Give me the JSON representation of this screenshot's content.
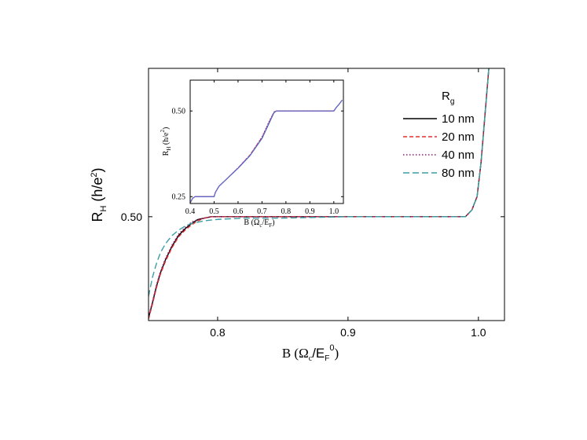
{
  "chart_data": [
    {
      "id": "main",
      "type": "line",
      "xlim": [
        0.747,
        1.02
      ],
      "ylim": [
        0.423,
        0.61
      ],
      "xlabel": "B (Ωc/EF0)",
      "ylabel": "RH (h/e2)",
      "xticks": [
        0.8,
        0.9,
        1.0
      ],
      "xtick_labels": [
        "0.8",
        "0.9",
        "1.0"
      ],
      "yticks": [
        0.5
      ],
      "ytick_labels": [
        "0.50"
      ],
      "grid": false,
      "series": [
        {
          "name": "10 nm",
          "color": "#000000",
          "dash": "",
          "x": [
            0.747,
            0.75,
            0.753,
            0.756,
            0.76,
            0.765,
            0.77,
            0.775,
            0.78,
            0.785,
            0.79,
            0.795,
            0.8,
            0.82,
            0.85,
            0.9,
            0.95,
            0.99,
            0.995,
            0.999,
            1.002,
            1.005,
            1.008,
            1.01
          ],
          "y": [
            0.425,
            0.436,
            0.448,
            0.458,
            0.468,
            0.478,
            0.486,
            0.491,
            0.495,
            0.498,
            0.499,
            0.5,
            0.5,
            0.5,
            0.5,
            0.5,
            0.5,
            0.5,
            0.505,
            0.515,
            0.54,
            0.575,
            0.61,
            0.615
          ]
        },
        {
          "name": "20 nm",
          "color": "#e03030",
          "dash": "5,3",
          "x": [
            0.747,
            0.75,
            0.753,
            0.756,
            0.76,
            0.765,
            0.77,
            0.775,
            0.78,
            0.785,
            0.79,
            0.795,
            0.8,
            0.82,
            0.85,
            0.9,
            0.95,
            0.99,
            0.995,
            0.999,
            1.002,
            1.005,
            1.008,
            1.01
          ],
          "y": [
            0.424,
            0.435,
            0.447,
            0.457,
            0.467,
            0.477,
            0.485,
            0.49,
            0.494,
            0.497,
            0.499,
            0.5,
            0.5,
            0.5,
            0.5,
            0.5,
            0.5,
            0.5,
            0.505,
            0.515,
            0.54,
            0.575,
            0.61,
            0.615
          ]
        },
        {
          "name": "40 nm",
          "color": "#8e1a72",
          "dash": "1.5,2.5",
          "x": [
            0.747,
            0.75,
            0.753,
            0.756,
            0.76,
            0.765,
            0.77,
            0.775,
            0.78,
            0.785,
            0.79,
            0.795,
            0.8,
            0.82,
            0.85,
            0.9,
            0.95,
            0.99,
            0.995,
            0.999,
            1.002,
            1.005,
            1.008,
            1.01
          ],
          "y": [
            0.426,
            0.437,
            0.449,
            0.459,
            0.469,
            0.479,
            0.487,
            0.492,
            0.496,
            0.498,
            0.499,
            0.5,
            0.5,
            0.5,
            0.5,
            0.5,
            0.5,
            0.5,
            0.505,
            0.515,
            0.54,
            0.575,
            0.61,
            0.615
          ]
        },
        {
          "name": "80 nm",
          "color": "#3a9ea4",
          "dash": "8,4",
          "x": [
            0.747,
            0.75,
            0.753,
            0.756,
            0.76,
            0.765,
            0.77,
            0.775,
            0.78,
            0.79,
            0.8,
            0.82,
            0.85,
            0.9,
            0.95,
            0.99,
            0.995,
            0.999,
            1.002,
            1.005,
            1.008,
            1.01
          ],
          "y": [
            0.441,
            0.455,
            0.465,
            0.473,
            0.48,
            0.486,
            0.49,
            0.493,
            0.495,
            0.497,
            0.498,
            0.499,
            0.499,
            0.5,
            0.5,
            0.5,
            0.505,
            0.515,
            0.54,
            0.575,
            0.61,
            0.615
          ]
        }
      ]
    },
    {
      "id": "inset",
      "type": "line",
      "xlim": [
        0.4,
        1.04
      ],
      "ylim": [
        0.23,
        0.59
      ],
      "xlabel": "B (Ωc/EF0)",
      "ylabel": "RH (h/e2)",
      "xticks": [
        0.4,
        0.5,
        0.6,
        0.7,
        0.8,
        0.9,
        1.0
      ],
      "xtick_labels": [
        "0.4",
        "0.5",
        "0.6",
        "0.7",
        "0.8",
        "0.9",
        "1.0"
      ],
      "yticks": [
        0.25,
        0.5
      ],
      "ytick_labels": [
        "0.25",
        "0.50"
      ],
      "grid": false,
      "series": [
        {
          "name": "10 nm",
          "color": "#000000",
          "dash": "",
          "x": [
            0.4,
            0.41,
            0.42,
            0.5,
            0.505,
            0.52,
            0.55,
            0.6,
            0.65,
            0.7,
            0.73,
            0.75,
            0.76,
            0.8,
            0.9,
            1.0,
            1.01,
            1.02,
            1.03,
            1.035
          ],
          "y": [
            0.232,
            0.245,
            0.25,
            0.25,
            0.262,
            0.28,
            0.3,
            0.333,
            0.37,
            0.42,
            0.465,
            0.495,
            0.5,
            0.5,
            0.5,
            0.5,
            0.51,
            0.518,
            0.527,
            0.532
          ]
        },
        {
          "name": "20 nm",
          "color": "#e03030",
          "dash": "4,2",
          "x": [
            0.4,
            0.41,
            0.42,
            0.5,
            0.505,
            0.52,
            0.55,
            0.6,
            0.65,
            0.7,
            0.73,
            0.75,
            0.76,
            0.8,
            0.9,
            1.0,
            1.01,
            1.02,
            1.03,
            1.035
          ],
          "y": [
            0.232,
            0.245,
            0.25,
            0.25,
            0.262,
            0.28,
            0.3,
            0.334,
            0.372,
            0.423,
            0.468,
            0.497,
            0.5,
            0.5,
            0.5,
            0.5,
            0.51,
            0.518,
            0.527,
            0.532
          ]
        },
        {
          "name": "40 nm",
          "color": "#8e1a72",
          "dash": "1.5,2",
          "x": [
            0.4,
            0.41,
            0.42,
            0.5,
            0.505,
            0.52,
            0.55,
            0.6,
            0.65,
            0.7,
            0.73,
            0.75,
            0.76,
            0.8,
            0.9,
            1.0,
            1.01,
            1.02,
            1.03,
            1.035
          ],
          "y": [
            0.232,
            0.245,
            0.25,
            0.25,
            0.262,
            0.28,
            0.3,
            0.334,
            0.371,
            0.424,
            0.47,
            0.497,
            0.5,
            0.5,
            0.5,
            0.5,
            0.51,
            0.518,
            0.527,
            0.532
          ]
        },
        {
          "name": "80 nm",
          "color": "#5a6ee0",
          "dash": "",
          "x": [
            0.4,
            0.41,
            0.42,
            0.5,
            0.505,
            0.52,
            0.55,
            0.6,
            0.65,
            0.7,
            0.73,
            0.75,
            0.76,
            0.8,
            0.9,
            1.0,
            1.01,
            1.02,
            1.03,
            1.035
          ],
          "y": [
            0.232,
            0.245,
            0.25,
            0.25,
            0.262,
            0.28,
            0.3,
            0.333,
            0.37,
            0.42,
            0.466,
            0.495,
            0.5,
            0.5,
            0.5,
            0.5,
            0.51,
            0.518,
            0.527,
            0.532
          ]
        }
      ]
    }
  ],
  "axis_text": {
    "main_y_main": "R",
    "main_y_sub": "H",
    "main_y_rest": " (h/e",
    "main_y_sup": "2",
    "main_y_close": ")",
    "main_x_main": "B (Ω",
    "main_x_sub1": "c",
    "main_x_mid": "/E",
    "main_x_sub2": "F",
    "main_x_sup": "0",
    "main_x_close": ")",
    "inset_y_main": "R",
    "inset_y_sub": "H",
    "inset_y_rest": " (h/e",
    "inset_y_sup": "2",
    "inset_y_close": ")",
    "inset_x_main": "B (Ω",
    "inset_x_sub1": "c",
    "inset_x_mid": "/E",
    "inset_x_sub2": "F",
    "inset_x_close": ")"
  },
  "legend": {
    "title_main": "R",
    "title_sub": "g",
    "entries": [
      "10 nm",
      "20 nm",
      "40 nm",
      "80 nm"
    ]
  }
}
